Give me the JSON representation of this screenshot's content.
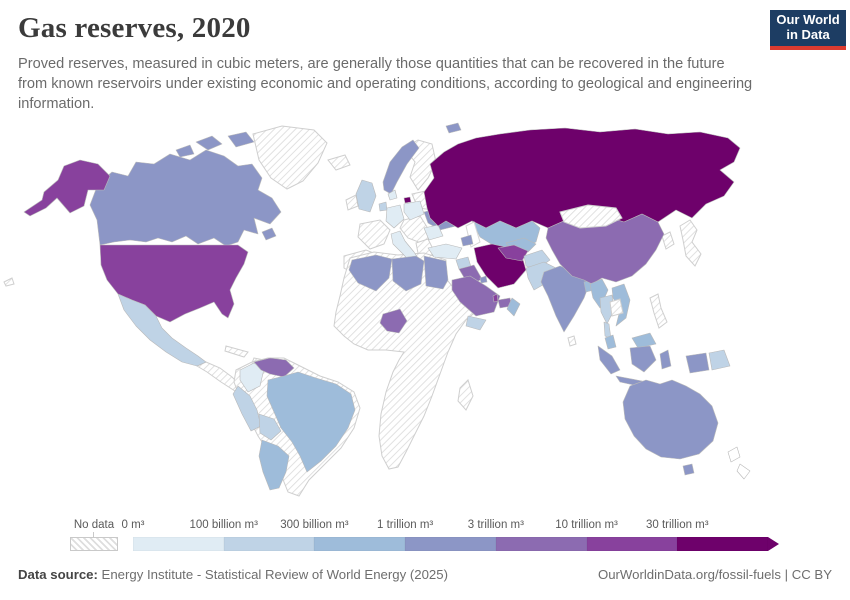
{
  "header": {
    "title": "Gas reserves, 2020",
    "subtitle": "Proved reserves, measured in cubic meters, are generally those quantities that can be recovered in the future from known reservoirs under existing economic and operating conditions, according to geological and engineering information.",
    "logo": {
      "line1": "Our World",
      "line2": "in Data",
      "bg": "#1d3d63",
      "accent": "#dc3b2f"
    }
  },
  "legend": {
    "no_data_label": "No data",
    "tick_labels": [
      "0 m³",
      "100 billion m³",
      "300 billion m³",
      "1 trillion m³",
      "3 trillion m³",
      "10 trillion m³",
      "30 trillion m³"
    ],
    "colors": [
      "#e0ecf4",
      "#bfd3e6",
      "#9ebcda",
      "#8c96c6",
      "#8c6bb1",
      "#88419d",
      "#6e016b"
    ]
  },
  "footer": {
    "source_label": "Data source:",
    "source_text": " Energy Institute - Statistical Review of World Energy (2025)",
    "right_text": "OurWorldinData.org/fossil-fuels | CC BY"
  },
  "chart_data": {
    "type": "choropleth-map",
    "title": "Gas reserves, 2020",
    "unit": "cubic meters",
    "legend_bins": [
      "0 m³",
      "100 billion m³",
      "300 billion m³",
      "1 trillion m³",
      "3 trillion m³",
      "10 trillion m³",
      "30 trillion m³"
    ],
    "bin_colors": [
      "#e0ecf4",
      "#bfd3e6",
      "#9ebcda",
      "#8c96c6",
      "#8c6bb1",
      "#88419d",
      "#6e016b"
    ],
    "no_data_style": "diagonal-hatch",
    "countries_by_bin": {
      "30 trillion m³ and above": [
        "Russia",
        "Iran"
      ],
      "10 to 30 trillion m³": [
        "United States",
        "Turkmenistan",
        "Qatar"
      ],
      "3 to 10 trillion m³": [
        "China",
        "Saudi Arabia",
        "United Arab Emirates",
        "Venezuela",
        "Nigeria",
        "Iraq"
      ],
      "1 to 3 trillion m³": [
        "Canada",
        "Australia",
        "Norway",
        "Ukraine",
        "Algeria",
        "Libya",
        "Egypt",
        "India",
        "Indonesia",
        "Azerbaijan",
        "Kuwait"
      ],
      "300 billion to 1 trillion m³": [
        "Kazakhstan",
        "Uzbekistan",
        "Brazil",
        "Argentina",
        "Vietnam",
        "Myanmar",
        "Oman",
        "Bangladesh",
        "Malaysia"
      ],
      "100 to 300 billion m³": [
        "Mexico",
        "Peru",
        "Bolivia",
        "United Kingdom",
        "Netherlands",
        "Pakistan",
        "Afghanistan",
        "Thailand",
        "Papua New Guinea",
        "Yemen",
        "Syria"
      ],
      "0 to 100 billion m³": [
        "Colombia",
        "Germany",
        "Poland",
        "Romania",
        "Italy",
        "Denmark",
        "Turkey"
      ],
      "No data": [
        "Greenland",
        "Iceland",
        "Ireland",
        "France",
        "Spain",
        "Portugal",
        "Sweden",
        "Finland",
        "Baltic states",
        "Balkans",
        "Greece",
        "Mongolia",
        "Japan",
        "South Korea",
        "Philippines",
        "Laos",
        "Cambodia",
        "Sri Lanka",
        "Chile",
        "Ecuador",
        "Paraguay",
        "Central America",
        "Cuba",
        "Most of Sub-Saharan Africa",
        "Madagascar",
        "New Zealand"
      ]
    }
  },
  "map": {
    "countries": {
      "russia": 6,
      "iran": 6,
      "kaliningrad": 6,
      "usa": 5,
      "alaska": 5,
      "turkmenistan": 5,
      "qatar": 5,
      "china": 4,
      "saudi-arabia": 4,
      "uae": 4,
      "venezuela": 4,
      "nigeria": 4,
      "iraq": 4,
      "canada": 3,
      "australia": 3,
      "norway": 3,
      "svalbard": 3,
      "ukraine": 3,
      "algeria": 3,
      "libya": 3,
      "egypt": 3,
      "india": 3,
      "indonesia": 3,
      "azerbaijan": 3,
      "kuwait": 3,
      "kazakhstan": 2,
      "uzbekistan": 2,
      "brazil": 2,
      "argentina": 2,
      "vietnam": 2,
      "myanmar": 2,
      "oman": 2,
      "bangladesh": 2,
      "malaysia": 2,
      "mexico": 1,
      "peru": 1,
      "bolivia": 1,
      "uk": 1,
      "netherlands": 1,
      "pakistan": 1,
      "afghanistan": 1,
      "thailand": 1,
      "papua-new-guinea": 1,
      "yemen": 1,
      "syria": 1,
      "colombia": 0,
      "germany": 0,
      "poland": 0,
      "romania": 0,
      "italy": 0,
      "denmark": 0,
      "turkey": 0
    }
  }
}
